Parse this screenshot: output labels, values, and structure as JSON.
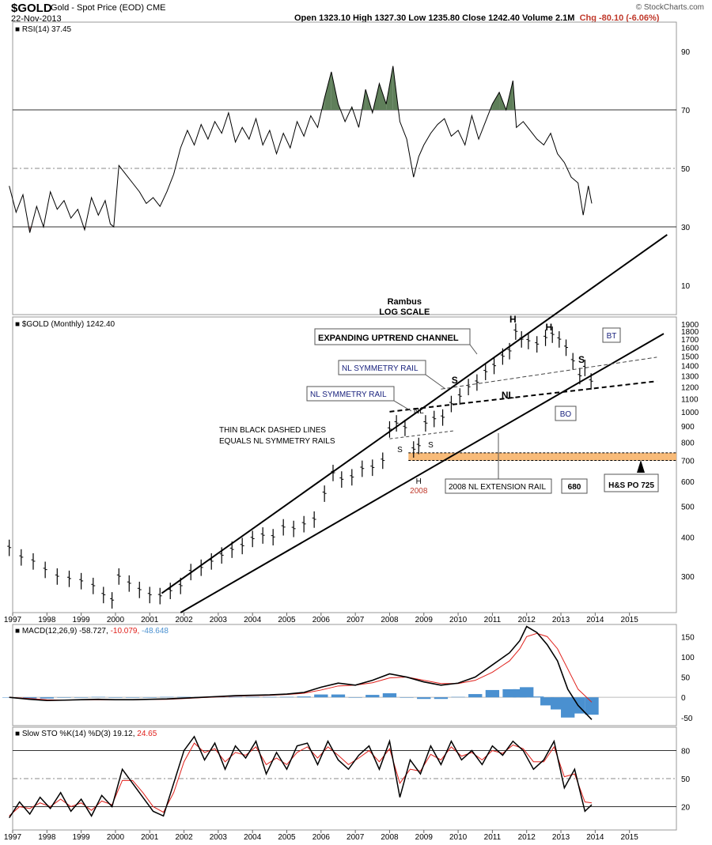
{
  "header": {
    "symbol": "$GOLD",
    "description": "Gold - Spot Price (EOD)",
    "exchange": "CME",
    "date": "22-Nov-2013",
    "ohlc_text": "Open 1323.10  High 1327.30  Low 1235.80  Close 1242.40  Volume 2.1M",
    "change_text": "Chg -80.10 (-6.06%)",
    "watermark": "© StockCharts.com"
  },
  "colors": {
    "price_bars": "#000000",
    "overbought_fill": "#5f7f5a",
    "oversold_fill": "#9c6b6b",
    "signal_line": "#e0201b",
    "histogram": "#4a90d0",
    "highlight_band": "#f7b46a",
    "label_blue": "#1a237e"
  },
  "chart_data": [
    {
      "type": "line",
      "panel": "rsi",
      "legend": "RSI(14) 37.45",
      "ylim": [
        0,
        100
      ],
      "yticks": [
        10,
        30,
        50,
        70,
        90
      ],
      "levels": [
        30,
        50,
        70
      ],
      "x": [
        1996.9,
        1997.1,
        1997.3,
        1997.5,
        1997.7,
        1997.9,
        1998.1,
        1998.3,
        1998.5,
        1998.7,
        1998.9,
        1999.1,
        1999.3,
        1999.5,
        1999.7,
        1999.85,
        1999.95,
        2000.1,
        2000.3,
        2000.5,
        2000.7,
        2000.9,
        2001.1,
        2001.3,
        2001.5,
        2001.7,
        2001.9,
        2002.1,
        2002.3,
        2002.5,
        2002.7,
        2002.9,
        2003.1,
        2003.3,
        2003.5,
        2003.7,
        2003.9,
        2004.1,
        2004.3,
        2004.5,
        2004.7,
        2004.9,
        2005.1,
        2005.3,
        2005.5,
        2005.7,
        2005.9,
        2006.1,
        2006.3,
        2006.5,
        2006.7,
        2006.9,
        2007.1,
        2007.3,
        2007.5,
        2007.7,
        2007.9,
        2008.1,
        2008.3,
        2008.5,
        2008.7,
        2008.85,
        2009.0,
        2009.2,
        2009.4,
        2009.6,
        2009.8,
        2010.0,
        2010.2,
        2010.4,
        2010.6,
        2010.8,
        2011.0,
        2011.2,
        2011.4,
        2011.6,
        2011.7,
        2011.9,
        2012.1,
        2012.3,
        2012.5,
        2012.7,
        2012.9,
        2013.1,
        2013.3,
        2013.5,
        2013.65,
        2013.8,
        2013.9
      ],
      "y": [
        44,
        35,
        41,
        28,
        37,
        30,
        42,
        36,
        39,
        33,
        36,
        29,
        40,
        34,
        39,
        31,
        30,
        51,
        48,
        45,
        42,
        38,
        40,
        37,
        42,
        48,
        57,
        63,
        58,
        65,
        60,
        66,
        62,
        69,
        59,
        64,
        60,
        67,
        58,
        63,
        55,
        62,
        57,
        66,
        61,
        68,
        64,
        74,
        83,
        72,
        66,
        71,
        64,
        77,
        69,
        79,
        72,
        85,
        66,
        60,
        47,
        54,
        58,
        62,
        65,
        67,
        61,
        63,
        58,
        68,
        60,
        66,
        72,
        76,
        70,
        80,
        64,
        66,
        63,
        60,
        58,
        62,
        55,
        52,
        47,
        45,
        34,
        44,
        38
      ],
      "fill_above": 70,
      "fill_below": 30
    },
    {
      "type": "bar",
      "panel": "price",
      "legend": "$GOLD (Monthly) 1242.40",
      "scale": "log",
      "ylim": [
        230,
        2000
      ],
      "yticks": [
        300,
        400,
        500,
        600,
        700,
        800,
        900,
        1000,
        1100,
        1200,
        1300,
        1400,
        1500,
        1600,
        1700,
        1800,
        1900
      ],
      "x_ticks": [
        "1997",
        "1998",
        "1999",
        "2000",
        "2001",
        "2002",
        "2003",
        "2004",
        "2005",
        "2006",
        "2007",
        "2008",
        "2009",
        "2010",
        "2011",
        "2012",
        "2013",
        "2014",
        "2015"
      ],
      "x": [
        1996.9,
        1997.25,
        1997.6,
        1997.95,
        1998.3,
        1998.65,
        1999.0,
        1999.35,
        1999.65,
        1999.9,
        2000.1,
        2000.4,
        2000.7,
        2001.0,
        2001.3,
        2001.6,
        2001.9,
        2002.2,
        2002.5,
        2002.8,
        2003.1,
        2003.4,
        2003.7,
        2004.0,
        2004.3,
        2004.6,
        2004.9,
        2005.2,
        2005.5,
        2005.8,
        2006.1,
        2006.35,
        2006.6,
        2006.9,
        2007.2,
        2007.5,
        2007.8,
        2008.0,
        2008.2,
        2008.45,
        2008.7,
        2008.85,
        2009.05,
        2009.3,
        2009.55,
        2009.8,
        2010.05,
        2010.3,
        2010.55,
        2010.8,
        2011.05,
        2011.3,
        2011.5,
        2011.68,
        2011.85,
        2012.05,
        2012.3,
        2012.55,
        2012.75,
        2012.95,
        2013.15,
        2013.35,
        2013.55,
        2013.7,
        2013.88
      ],
      "y": [
        370,
        345,
        335,
        315,
        300,
        295,
        290,
        280,
        262,
        252,
        300,
        285,
        272,
        262,
        260,
        270,
        280,
        310,
        320,
        335,
        350,
        365,
        375,
        395,
        405,
        400,
        430,
        425,
        440,
        455,
        550,
        640,
        610,
        620,
        660,
        665,
        700,
        880,
        920,
        890,
        760,
        780,
        920,
        950,
        960,
        1060,
        1120,
        1200,
        1240,
        1340,
        1400,
        1500,
        1560,
        1800,
        1700,
        1680,
        1640,
        1720,
        1760,
        1700,
        1600,
        1450,
        1300,
        1380,
        1250
      ],
      "annotations": {
        "title_1": "Rambus",
        "title_2": "LOG SCALE",
        "channel": "EXPANDING UPTREND CHANNEL",
        "rail_1": "NL SYMMETRY RAIL",
        "rail_2": "NL SYMMETRY RAIL",
        "thin_1": "THIN BLACK DASHED LINES",
        "thin_2": "EQUALS NL SYMMETRY RAILS",
        "ext_rail": "2008 NL EXTENSION RAIL",
        "year_2008": "2008",
        "h_small": "H",
        "s_a": "S",
        "s_b": "S",
        "nl_small": "NL",
        "s_top": "S",
        "h_top": "H",
        "h_right": "H",
        "s_right": "S",
        "nl_big": "NL",
        "bt": "BT",
        "bo": "BO",
        "val_680": "680",
        "hs_po": "H&S PO 725"
      }
    },
    {
      "type": "line",
      "panel": "macd",
      "legend_label": "MACD(12,26,9)",
      "legend_macd": "-58.727",
      "legend_signal": "-10.079",
      "legend_hist": "-48.648",
      "ylim": [
        -70,
        180
      ],
      "yticks": [
        -50,
        0,
        50,
        100,
        150
      ],
      "x": [
        1996.9,
        1997.5,
        1998.0,
        1998.5,
        1999.0,
        1999.5,
        2000.0,
        2000.5,
        2001.0,
        2001.5,
        2002.0,
        2002.5,
        2003.0,
        2003.5,
        2004.0,
        2004.5,
        2005.0,
        2005.5,
        2006.0,
        2006.5,
        2007.0,
        2007.5,
        2008.0,
        2008.5,
        2009.0,
        2009.5,
        2010.0,
        2010.5,
        2011.0,
        2011.5,
        2011.8,
        2012.0,
        2012.3,
        2012.6,
        2012.9,
        2013.2,
        2013.5,
        2013.9
      ],
      "series": [
        {
          "values": [
            0,
            -5,
            -8,
            -7,
            -6,
            -5,
            -6,
            -6,
            -5,
            -4,
            -2,
            0,
            2,
            4,
            5,
            6,
            8,
            12,
            25,
            35,
            30,
            42,
            58,
            50,
            38,
            30,
            35,
            50,
            80,
            110,
            140,
            175,
            160,
            130,
            90,
            20,
            -20,
            -55
          ]
        },
        {
          "values": [
            0,
            -3,
            -6,
            -7,
            -6,
            -6,
            -6,
            -6,
            -5,
            -5,
            -3,
            -1,
            1,
            3,
            4,
            5,
            7,
            10,
            18,
            28,
            30,
            36,
            48,
            50,
            42,
            34,
            34,
            42,
            62,
            90,
            120,
            150,
            158,
            150,
            120,
            70,
            20,
            -12
          ]
        }
      ],
      "histogram": [
        0,
        -3,
        -3,
        -1,
        0,
        1,
        0,
        0,
        0,
        1,
        1,
        1,
        1,
        1,
        1,
        1,
        1,
        2,
        7,
        7,
        0,
        6,
        10,
        0,
        -4,
        -4,
        1,
        8,
        18,
        20,
        20,
        25,
        2,
        -20,
        -30,
        -50,
        -40,
        -43
      ]
    },
    {
      "type": "line",
      "panel": "stochastic",
      "legend_label": "Slow STO %K(14) %D(3)",
      "legend_k": "19.12",
      "legend_d": "24.65",
      "ylim": [
        -5,
        105
      ],
      "yticks": [
        20,
        50,
        80
      ],
      "x_ticks": [
        "1997",
        "1998",
        "1999",
        "2000",
        "2001",
        "2002",
        "2003",
        "2004",
        "2005",
        "2006",
        "2007",
        "2008",
        "2009",
        "2010",
        "2011",
        "2012",
        "2013",
        "2014",
        "2015"
      ],
      "x": [
        1996.9,
        1997.2,
        1997.5,
        1997.8,
        1998.1,
        1998.4,
        1998.7,
        1999.0,
        1999.3,
        1999.6,
        1999.9,
        2000.2,
        2000.5,
        2000.8,
        2001.1,
        2001.4,
        2001.7,
        2002.0,
        2002.3,
        2002.6,
        2002.9,
        2003.2,
        2003.5,
        2003.8,
        2004.1,
        2004.4,
        2004.7,
        2005.0,
        2005.3,
        2005.6,
        2005.9,
        2006.2,
        2006.5,
        2006.8,
        2007.1,
        2007.4,
        2007.7,
        2008.0,
        2008.3,
        2008.6,
        2008.9,
        2009.2,
        2009.5,
        2009.8,
        2010.1,
        2010.4,
        2010.7,
        2011.0,
        2011.3,
        2011.6,
        2011.9,
        2012.2,
        2012.5,
        2012.8,
        2013.1,
        2013.4,
        2013.7,
        2013.9
      ],
      "series": [
        {
          "values": [
            8,
            25,
            12,
            30,
            18,
            35,
            15,
            28,
            10,
            32,
            20,
            60,
            45,
            30,
            15,
            10,
            45,
            80,
            95,
            70,
            88,
            60,
            85,
            72,
            90,
            55,
            78,
            60,
            85,
            88,
            65,
            90,
            70,
            60,
            75,
            85,
            60,
            90,
            30,
            70,
            55,
            85,
            65,
            90,
            70,
            80,
            65,
            85,
            75,
            90,
            80,
            60,
            70,
            90,
            40,
            60,
            15,
            22
          ]
        },
        {
          "values": [
            10,
            20,
            18,
            24,
            20,
            28,
            20,
            24,
            16,
            26,
            22,
            48,
            48,
            35,
            20,
            14,
            35,
            68,
            88,
            78,
            82,
            68,
            78,
            75,
            84,
            65,
            72,
            65,
            78,
            84,
            72,
            84,
            75,
            65,
            72,
            80,
            68,
            82,
            45,
            60,
            58,
            76,
            70,
            84,
            74,
            78,
            70,
            80,
            77,
            86,
            82,
            68,
            68,
            84,
            52,
            55,
            25,
            24
          ]
        }
      ]
    }
  ]
}
